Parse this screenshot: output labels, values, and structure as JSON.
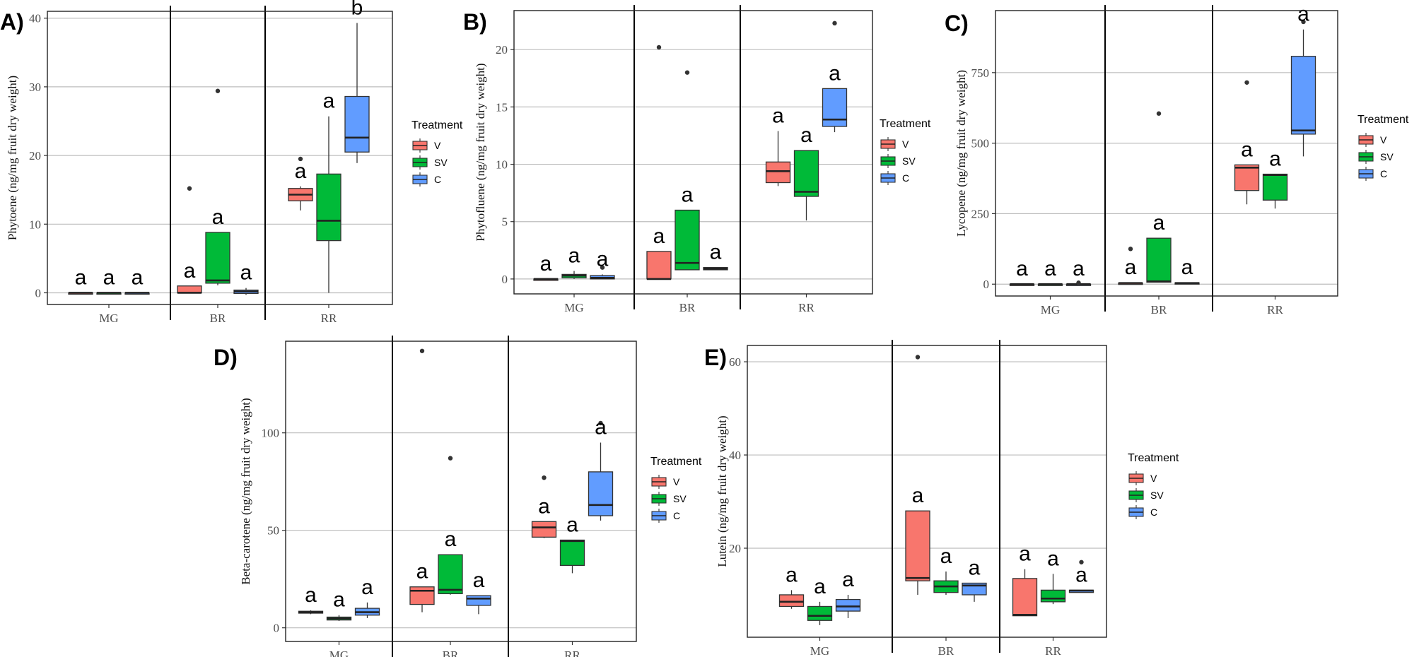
{
  "colors": {
    "V": "#F8766D",
    "SV": "#00BA38",
    "C": "#619CFF"
  },
  "legend": {
    "title": "Treatment",
    "labels": [
      "V",
      "SV",
      "C"
    ]
  },
  "xlabel": "",
  "chart_data": [
    {
      "panel": "A)",
      "type": "box",
      "title": "",
      "xlabel": "",
      "ylabel": "Phytoene (ng/mg fruit dry weight)",
      "ylim": [
        -1.7,
        41
      ],
      "yticks": [
        0,
        10,
        20,
        30,
        40
      ],
      "categories": [
        "MG",
        "BR",
        "RR"
      ],
      "series": [
        {
          "name": "V",
          "boxes": [
            {
              "min": 0,
              "q1": 0,
              "median": 0,
              "q3": 0,
              "max": 0,
              "outliers": [],
              "letter": "a"
            },
            {
              "min": 0,
              "q1": 0,
              "median": 0,
              "q3": 1,
              "max": 1,
              "outliers": [
                15.2
              ],
              "letter": "a"
            },
            {
              "min": 12,
              "q1": 13.4,
              "median": 14.3,
              "q3": 15.2,
              "max": 15.5,
              "outliers": [
                19.5
              ],
              "letter": "a"
            }
          ]
        },
        {
          "name": "SV",
          "boxes": [
            {
              "min": 0,
              "q1": 0,
              "median": 0,
              "q3": 0,
              "max": 0,
              "outliers": [],
              "letter": "a"
            },
            {
              "min": 1.1,
              "q1": 1.4,
              "median": 1.8,
              "q3": 8.8,
              "max": 8.8,
              "outliers": [
                29.4
              ],
              "letter": "a"
            },
            {
              "min": 0,
              "q1": 7.6,
              "median": 10.5,
              "q3": 17.3,
              "max": 25.7,
              "outliers": [],
              "letter": "a"
            }
          ]
        },
        {
          "name": "C",
          "boxes": [
            {
              "min": 0,
              "q1": 0,
              "median": 0,
              "q3": 0,
              "max": 0,
              "outliers": [],
              "letter": "a"
            },
            {
              "min": -0.3,
              "q1": -0.1,
              "median": 0.2,
              "q3": 0.4,
              "max": 0.7,
              "outliers": [],
              "letter": "a"
            },
            {
              "min": 18.9,
              "q1": 20.5,
              "median": 22.6,
              "q3": 28.6,
              "max": 39.3,
              "outliers": [],
              "letter": "b"
            }
          ]
        }
      ]
    },
    {
      "panel": "B)",
      "type": "box",
      "title": "",
      "xlabel": "",
      "ylabel": "Phytofluene (ng/mg fruit dry weight)",
      "ylim": [
        -1.3,
        23.4
      ],
      "yticks": [
        0,
        5,
        10,
        15,
        20
      ],
      "categories": [
        "MG",
        "BR",
        "RR"
      ],
      "series": [
        {
          "name": "V",
          "boxes": [
            {
              "min": 0,
              "q1": 0,
              "median": 0,
              "q3": 0,
              "max": 0,
              "outliers": [],
              "letter": "a"
            },
            {
              "min": 0,
              "q1": 0,
              "median": 0,
              "q3": 2.4,
              "max": 2.4,
              "outliers": [
                20.2
              ],
              "letter": "a"
            },
            {
              "min": 8.1,
              "q1": 8.4,
              "median": 9.4,
              "q3": 10.2,
              "max": 12.9,
              "outliers": [],
              "letter": "a"
            }
          ]
        },
        {
          "name": "SV",
          "boxes": [
            {
              "min": 0,
              "q1": 0.1,
              "median": 0.3,
              "q3": 0.4,
              "max": 0.7,
              "outliers": [],
              "letter": "a"
            },
            {
              "min": 0.8,
              "q1": 0.8,
              "median": 1.4,
              "q3": 6.0,
              "max": 6.0,
              "outliers": [
                18.0
              ],
              "letter": "a"
            },
            {
              "min": 5.1,
              "q1": 7.2,
              "median": 7.6,
              "q3": 11.2,
              "max": 11.2,
              "outliers": [],
              "letter": "a"
            }
          ]
        },
        {
          "name": "C",
          "boxes": [
            {
              "min": 0,
              "q1": 0,
              "median": 0.1,
              "q3": 0.3,
              "max": 0.4,
              "outliers": [
                1.0
              ],
              "letter": "a"
            },
            {
              "min": 0.8,
              "q1": 0.8,
              "median": 0.9,
              "q3": 1.0,
              "max": 1.0,
              "outliers": [],
              "letter": "a"
            },
            {
              "min": 12.8,
              "q1": 13.3,
              "median": 13.9,
              "q3": 16.6,
              "max": 16.6,
              "outliers": [
                22.3
              ],
              "letter": "a"
            }
          ]
        }
      ]
    },
    {
      "panel": "C)",
      "type": "box",
      "title": "",
      "xlabel": "",
      "ylabel": "Lycopene (ng/mg fruit dry weight)",
      "ylim": [
        -42,
        970
      ],
      "yticks": [
        0,
        250,
        500,
        750
      ],
      "categories": [
        "MG",
        "BR",
        "RR"
      ],
      "series": [
        {
          "name": "V",
          "boxes": [
            {
              "min": 0,
              "q1": 0,
              "median": 0,
              "q3": 0,
              "max": 0,
              "outliers": [],
              "letter": "a"
            },
            {
              "min": 3,
              "q1": 3,
              "median": 4,
              "q3": 4,
              "max": 5,
              "outliers": [
                125
              ],
              "letter": "a"
            },
            {
              "min": 283,
              "q1": 332,
              "median": 413,
              "q3": 423,
              "max": 423,
              "outliers": [
                715
              ],
              "letter": "a"
            }
          ]
        },
        {
          "name": "SV",
          "boxes": [
            {
              "min": 0,
              "q1": 0,
              "median": 0,
              "q3": 0,
              "max": 0,
              "outliers": [],
              "letter": "a"
            },
            {
              "min": 7,
              "q1": 7,
              "median": 10,
              "q3": 163,
              "max": 163,
              "outliers": [
                605
              ],
              "letter": "a"
            },
            {
              "min": 268,
              "q1": 298,
              "median": 387,
              "q3": 390,
              "max": 390,
              "outliers": [],
              "letter": "a"
            }
          ]
        },
        {
          "name": "C",
          "boxes": [
            {
              "min": 0,
              "q1": 0,
              "median": 0,
              "q3": 0,
              "max": 0,
              "outliers": [
                5
              ],
              "letter": "a"
            },
            {
              "min": 3,
              "q1": 3,
              "median": 4,
              "q3": 5,
              "max": 5,
              "outliers": [],
              "letter": "a"
            },
            {
              "min": 453,
              "q1": 532,
              "median": 545,
              "q3": 808,
              "max": 903,
              "outliers": [
                930
              ],
              "letter": "a"
            }
          ]
        }
      ]
    },
    {
      "panel": "D)",
      "type": "box",
      "title": "",
      "xlabel": "",
      "ylabel": "Beta-carotene (ng/mg fruit dry weight)",
      "ylim": [
        -7,
        147
      ],
      "yticks": [
        0,
        50,
        100
      ],
      "categories": [
        "MG",
        "BR",
        "RR"
      ],
      "series": [
        {
          "name": "V",
          "boxes": [
            {
              "min": 7,
              "q1": 7.5,
              "median": 8,
              "q3": 8.5,
              "max": 9,
              "outliers": [],
              "letter": "a"
            },
            {
              "min": 8,
              "q1": 12,
              "median": 19,
              "q3": 21,
              "max": 21,
              "outliers": [
                142
              ],
              "letter": "a"
            },
            {
              "min": 46,
              "q1": 46.5,
              "median": 51.5,
              "q3": 54.5,
              "max": 54.5,
              "outliers": [
                77
              ],
              "letter": "a"
            }
          ]
        },
        {
          "name": "SV",
          "boxes": [
            {
              "min": 3.5,
              "q1": 4,
              "median": 4.8,
              "q3": 5.5,
              "max": 6.5,
              "outliers": [],
              "letter": "a"
            },
            {
              "min": 17,
              "q1": 17.5,
              "median": 19.5,
              "q3": 37.5,
              "max": 37.5,
              "outliers": [
                87
              ],
              "letter": "a"
            },
            {
              "min": 28,
              "q1": 32,
              "median": 44.5,
              "q3": 45,
              "max": 45,
              "outliers": [],
              "letter": "a"
            }
          ]
        },
        {
          "name": "C",
          "boxes": [
            {
              "min": 5,
              "q1": 6.5,
              "median": 8,
              "q3": 10,
              "max": 13,
              "outliers": [],
              "letter": "a"
            },
            {
              "min": 7,
              "q1": 11.5,
              "median": 15,
              "q3": 16.5,
              "max": 16.5,
              "outliers": [],
              "letter": "a"
            },
            {
              "min": 55,
              "q1": 57.5,
              "median": 63,
              "q3": 80,
              "max": 95,
              "outliers": [
                105
              ],
              "letter": "a"
            }
          ]
        }
      ]
    },
    {
      "panel": "E)",
      "type": "box",
      "title": "",
      "xlabel": "",
      "ylabel": "Lutein (ng/mg fruit dry weight)",
      "ylim": [
        0.9,
        63.5
      ],
      "yticks": [
        20,
        40,
        60
      ],
      "categories": [
        "MG",
        "BR",
        "RR"
      ],
      "series": [
        {
          "name": "V",
          "boxes": [
            {
              "min": 7,
              "q1": 7.5,
              "median": 8.5,
              "q3": 10,
              "max": 11,
              "outliers": [],
              "letter": "a"
            },
            {
              "min": 10,
              "q1": 13,
              "median": 13.6,
              "q3": 28,
              "max": 28,
              "outliers": [
                61
              ],
              "letter": "a"
            },
            {
              "min": 5.5,
              "q1": 5.5,
              "median": 5.7,
              "q3": 13.5,
              "max": 15.5,
              "outliers": [],
              "letter": "a"
            }
          ]
        },
        {
          "name": "SV",
          "boxes": [
            {
              "min": 3.5,
              "q1": 4.5,
              "median": 5.5,
              "q3": 7.5,
              "max": 8.5,
              "outliers": [],
              "letter": "a"
            },
            {
              "min": 10,
              "q1": 10.5,
              "median": 11.8,
              "q3": 13,
              "max": 15,
              "outliers": [],
              "letter": "a"
            },
            {
              "min": 8,
              "q1": 8.5,
              "median": 9.2,
              "q3": 11,
              "max": 14.5,
              "outliers": [],
              "letter": "a"
            }
          ]
        },
        {
          "name": "C",
          "boxes": [
            {
              "min": 5,
              "q1": 6.5,
              "median": 7.5,
              "q3": 9,
              "max": 10,
              "outliers": [],
              "letter": "a"
            },
            {
              "min": 8.5,
              "q1": 10,
              "median": 12,
              "q3": 12.5,
              "max": 12.5,
              "outliers": [],
              "letter": "a"
            },
            {
              "min": 10.5,
              "q1": 10.5,
              "median": 10.9,
              "q3": 11,
              "max": 11,
              "outliers": [
                17
              ],
              "letter": "a"
            }
          ]
        }
      ]
    }
  ]
}
